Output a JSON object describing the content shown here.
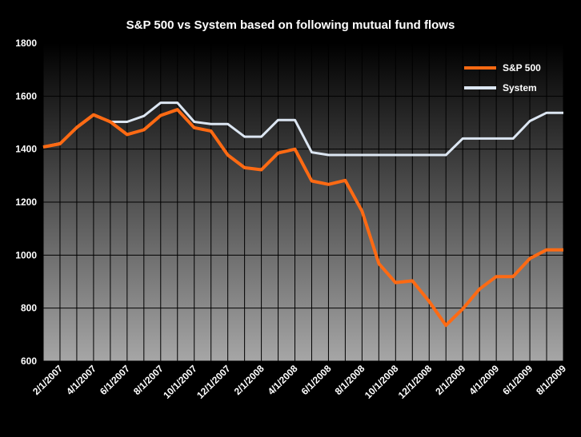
{
  "chart_data": {
    "type": "line",
    "title": "S&P 500 vs System based on following mutual fund flows",
    "xlabel": "",
    "ylabel": "",
    "ylim": [
      600,
      1800
    ],
    "yticks": [
      600,
      800,
      1000,
      1200,
      1400,
      1600,
      1800
    ],
    "x_tick_labels": [
      "2/1/2007",
      "4/1/2007",
      "6/1/2007",
      "8/1/2007",
      "10/1/2007",
      "12/1/2007",
      "2/1/2008",
      "4/1/2008",
      "6/1/2008",
      "8/1/2008",
      "10/1/2008",
      "12/1/2008",
      "2/1/2009",
      "4/1/2009",
      "6/1/2009",
      "8/1/2009"
    ],
    "x": [
      "1/1/2007",
      "2/1/2007",
      "3/1/2007",
      "4/1/2007",
      "5/1/2007",
      "6/1/2007",
      "7/1/2007",
      "8/1/2007",
      "9/1/2007",
      "10/1/2007",
      "11/1/2007",
      "12/1/2007",
      "1/1/2008",
      "2/1/2008",
      "3/1/2008",
      "4/1/2008",
      "5/1/2008",
      "6/1/2008",
      "7/1/2008",
      "8/1/2008",
      "9/1/2008",
      "10/1/2008",
      "11/1/2008",
      "12/1/2008",
      "1/1/2009",
      "2/1/2009",
      "3/1/2009",
      "4/1/2009",
      "5/1/2009",
      "6/1/2009",
      "7/1/2009",
      "8/1/2009"
    ],
    "grid": true,
    "legend_position": "top-right",
    "series": [
      {
        "name": "S&P 500",
        "color": "#ff6a13",
        "values": [
          1408,
          1420,
          1482,
          1530,
          1503,
          1455,
          1473,
          1527,
          1549,
          1481,
          1468,
          1378,
          1330,
          1322,
          1385,
          1400,
          1280,
          1267,
          1282,
          1166,
          968,
          896,
          903,
          825,
          735,
          797,
          872,
          919,
          919,
          987,
          1020,
          1020
        ]
      },
      {
        "name": "System",
        "color": "#dce6f2",
        "values": [
          1408,
          1422,
          1480,
          1528,
          1503,
          1503,
          1525,
          1575,
          1575,
          1503,
          1495,
          1495,
          1447,
          1447,
          1510,
          1510,
          1388,
          1378,
          1378,
          1378,
          1378,
          1378,
          1378,
          1378,
          1378,
          1440,
          1440,
          1440,
          1440,
          1506,
          1537,
          1537
        ]
      }
    ]
  }
}
